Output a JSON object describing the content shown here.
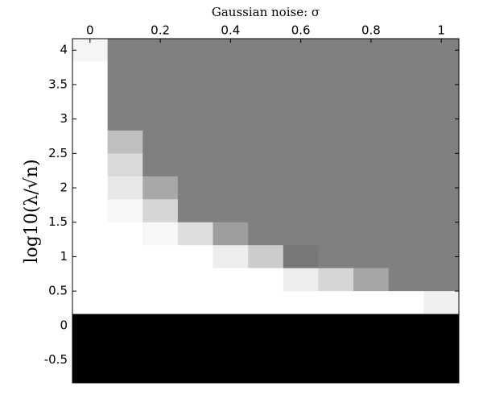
{
  "chart_data": {
    "type": "heatmap",
    "title": "Gaussian noise: σ",
    "ylabel": "log10(λ/√n)",
    "x": [
      0,
      0.1,
      0.2,
      0.3,
      0.4,
      0.5,
      0.6,
      0.7,
      0.8,
      0.9,
      1
    ],
    "y": [
      4,
      3.6667,
      3.3333,
      3,
      2.6667,
      2.3333,
      2,
      1.6667,
      1.3333,
      1,
      0.6667,
      0.3333,
      0,
      -0.3333,
      -0.6667
    ],
    "z": [
      [
        0.96,
        0.5,
        0.5,
        0.5,
        0.5,
        0.5,
        0.5,
        0.5,
        0.5,
        0.5,
        0.5
      ],
      [
        1,
        0.5,
        0.5,
        0.5,
        0.5,
        0.5,
        0.5,
        0.5,
        0.5,
        0.5,
        0.5
      ],
      [
        1,
        0.5,
        0.5,
        0.5,
        0.5,
        0.5,
        0.5,
        0.5,
        0.5,
        0.5,
        0.5
      ],
      [
        1,
        0.5,
        0.5,
        0.5,
        0.5,
        0.5,
        0.5,
        0.5,
        0.5,
        0.5,
        0.5
      ],
      [
        1,
        0.75,
        0.5,
        0.5,
        0.5,
        0.5,
        0.5,
        0.5,
        0.5,
        0.5,
        0.5
      ],
      [
        1,
        0.85,
        0.5,
        0.5,
        0.5,
        0.5,
        0.5,
        0.5,
        0.5,
        0.5,
        0.5
      ],
      [
        1,
        0.91,
        0.66,
        0.5,
        0.5,
        0.5,
        0.5,
        0.5,
        0.5,
        0.5,
        0.5
      ],
      [
        1,
        0.97,
        0.84,
        0.5,
        0.5,
        0.5,
        0.5,
        0.5,
        0.5,
        0.5,
        0.5
      ],
      [
        1,
        1,
        0.97,
        0.87,
        0.62,
        0.5,
        0.5,
        0.5,
        0.5,
        0.5,
        0.5
      ],
      [
        1,
        1,
        1,
        1,
        0.93,
        0.8,
        0.47,
        0.5,
        0.5,
        0.5,
        0.5
      ],
      [
        1,
        1,
        1,
        1,
        1,
        1,
        0.93,
        0.84,
        0.65,
        0.5,
        0.5
      ],
      [
        1,
        1,
        1,
        1,
        1,
        1,
        1,
        1,
        1,
        1,
        0.94
      ],
      [
        0,
        0,
        0,
        0,
        0,
        0,
        0,
        0,
        0,
        0,
        0
      ],
      [
        0,
        0,
        0,
        0,
        0,
        0,
        0,
        0,
        0,
        0,
        0
      ],
      [
        0,
        0,
        0,
        0,
        0,
        0,
        0,
        0,
        0,
        0,
        0
      ]
    ],
    "colormap": "gray",
    "xlim": [
      -0.05,
      1.05
    ],
    "xticks": [
      0,
      0.2,
      0.4,
      0.6,
      0.8,
      1
    ],
    "ylim": [
      -0.8333,
      4.1667
    ],
    "yticks": [
      4,
      3.5,
      3,
      2.5,
      2,
      1.5,
      1,
      0.5,
      0,
      -0.5
    ]
  }
}
